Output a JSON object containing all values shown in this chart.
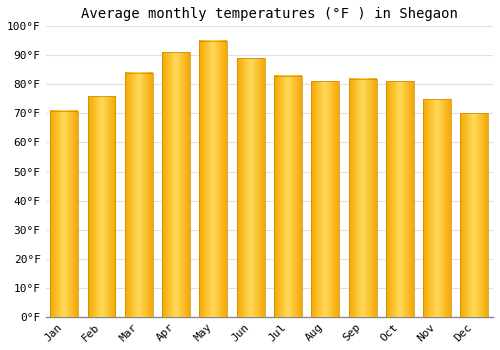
{
  "title": "Average monthly temperatures (°F ) in Shegaon",
  "months": [
    "Jan",
    "Feb",
    "Mar",
    "Apr",
    "May",
    "Jun",
    "Jul",
    "Aug",
    "Sep",
    "Oct",
    "Nov",
    "Dec"
  ],
  "values": [
    71,
    76,
    84,
    91,
    95,
    89,
    83,
    81,
    82,
    81,
    75,
    70
  ],
  "bar_color_bottom": "#F5A800",
  "bar_color_top": "#FFD95A",
  "bar_color_mid": "#FFC200",
  "bar_edge_color": "#CC8800",
  "background_color": "#FFFFFF",
  "ylim": [
    0,
    100
  ],
  "yticks": [
    0,
    10,
    20,
    30,
    40,
    50,
    60,
    70,
    80,
    90,
    100
  ],
  "ytick_labels": [
    "0°F",
    "10°F",
    "20°F",
    "30°F",
    "40°F",
    "50°F",
    "60°F",
    "70°F",
    "80°F",
    "90°F",
    "100°F"
  ],
  "grid_color": "#e0e0e0",
  "title_fontsize": 10,
  "tick_fontsize": 8,
  "bar_width": 0.75
}
